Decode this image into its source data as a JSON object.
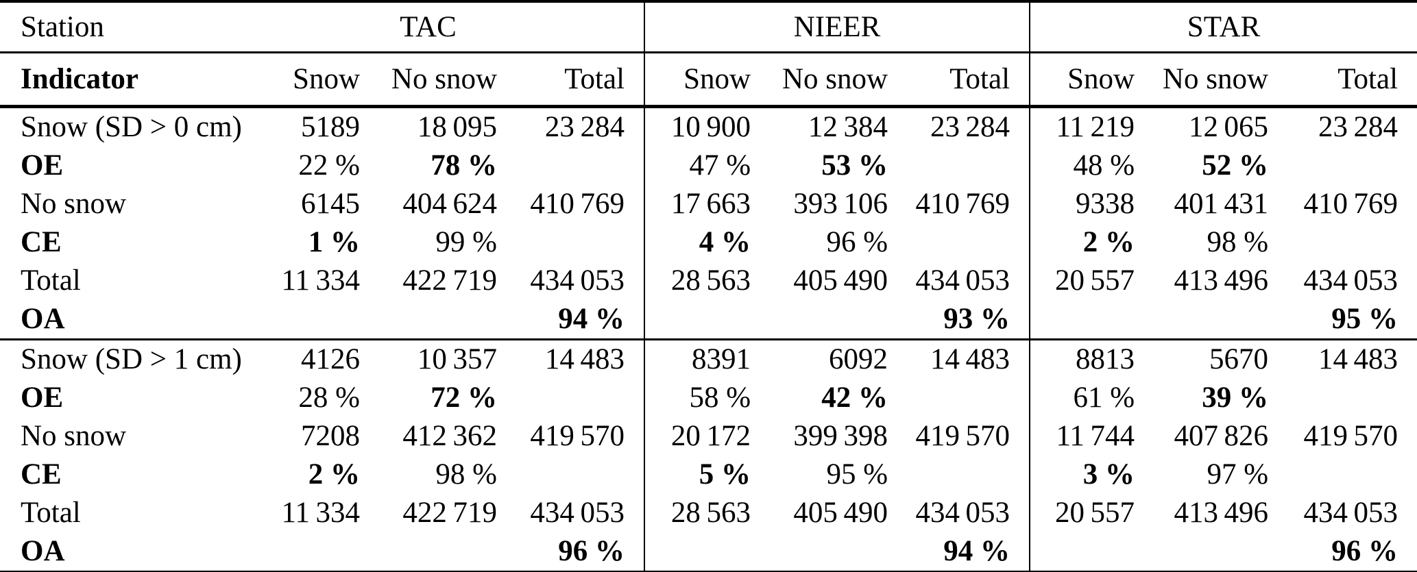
{
  "colors": {
    "text": "#000000",
    "background": "#ffffff",
    "rule": "#000000"
  },
  "table": {
    "station_label": "Station",
    "indicator_label": "Indicator",
    "groups": [
      {
        "name": "TAC"
      },
      {
        "name": "NIEER"
      },
      {
        "name": "STAR"
      }
    ],
    "sub_headers": [
      "Snow",
      "No snow",
      "Total"
    ],
    "blocks": [
      {
        "rows": [
          {
            "label": "Snow (SD > 0 cm)",
            "bold_label": false,
            "cells": [
              {
                "text": "5189",
                "bold": false
              },
              {
                "text": "18 095",
                "bold": false
              },
              {
                "text": "23 284",
                "bold": false
              },
              {
                "text": "10 900",
                "bold": false
              },
              {
                "text": "12 384",
                "bold": false
              },
              {
                "text": "23 284",
                "bold": false
              },
              {
                "text": "11 219",
                "bold": false
              },
              {
                "text": "12 065",
                "bold": false
              },
              {
                "text": "23 284",
                "bold": false
              }
            ]
          },
          {
            "label": "OE",
            "bold_label": true,
            "cells": [
              {
                "text": "22 %",
                "bold": false
              },
              {
                "text": "78 %",
                "bold": true
              },
              {
                "text": "",
                "bold": false
              },
              {
                "text": "47 %",
                "bold": false
              },
              {
                "text": "53 %",
                "bold": true
              },
              {
                "text": "",
                "bold": false
              },
              {
                "text": "48 %",
                "bold": false
              },
              {
                "text": "52 %",
                "bold": true
              },
              {
                "text": "",
                "bold": false
              }
            ]
          },
          {
            "label": "No snow",
            "bold_label": false,
            "cells": [
              {
                "text": "6145",
                "bold": false
              },
              {
                "text": "404 624",
                "bold": false
              },
              {
                "text": "410 769",
                "bold": false
              },
              {
                "text": "17 663",
                "bold": false
              },
              {
                "text": "393 106",
                "bold": false
              },
              {
                "text": "410 769",
                "bold": false
              },
              {
                "text": "9338",
                "bold": false
              },
              {
                "text": "401 431",
                "bold": false
              },
              {
                "text": "410 769",
                "bold": false
              }
            ]
          },
          {
            "label": "CE",
            "bold_label": true,
            "cells": [
              {
                "text": "1 %",
                "bold": true
              },
              {
                "text": "99 %",
                "bold": false
              },
              {
                "text": "",
                "bold": false
              },
              {
                "text": "4 %",
                "bold": true
              },
              {
                "text": "96 %",
                "bold": false
              },
              {
                "text": "",
                "bold": false
              },
              {
                "text": "2 %",
                "bold": true
              },
              {
                "text": "98 %",
                "bold": false
              },
              {
                "text": "",
                "bold": false
              }
            ]
          },
          {
            "label": "Total",
            "bold_label": false,
            "cells": [
              {
                "text": "11 334",
                "bold": false
              },
              {
                "text": "422 719",
                "bold": false
              },
              {
                "text": "434 053",
                "bold": false
              },
              {
                "text": "28 563",
                "bold": false
              },
              {
                "text": "405 490",
                "bold": false
              },
              {
                "text": "434 053",
                "bold": false
              },
              {
                "text": "20 557",
                "bold": false
              },
              {
                "text": "413 496",
                "bold": false
              },
              {
                "text": "434 053",
                "bold": false
              }
            ]
          },
          {
            "label": "OA",
            "bold_label": true,
            "cells": [
              {
                "text": "",
                "bold": false
              },
              {
                "text": "",
                "bold": false
              },
              {
                "text": "94 %",
                "bold": true
              },
              {
                "text": "",
                "bold": false
              },
              {
                "text": "",
                "bold": false
              },
              {
                "text": "93 %",
                "bold": true
              },
              {
                "text": "",
                "bold": false
              },
              {
                "text": "",
                "bold": false
              },
              {
                "text": "95 %",
                "bold": true
              }
            ]
          }
        ]
      },
      {
        "rows": [
          {
            "label": "Snow (SD > 1 cm)",
            "bold_label": false,
            "cells": [
              {
                "text": "4126",
                "bold": false
              },
              {
                "text": "10 357",
                "bold": false
              },
              {
                "text": "14 483",
                "bold": false
              },
              {
                "text": "8391",
                "bold": false
              },
              {
                "text": "6092",
                "bold": false
              },
              {
                "text": "14 483",
                "bold": false
              },
              {
                "text": "8813",
                "bold": false
              },
              {
                "text": "5670",
                "bold": false
              },
              {
                "text": "14 483",
                "bold": false
              }
            ]
          },
          {
            "label": "OE",
            "bold_label": true,
            "cells": [
              {
                "text": "28 %",
                "bold": false
              },
              {
                "text": "72 %",
                "bold": true
              },
              {
                "text": "",
                "bold": false
              },
              {
                "text": "58 %",
                "bold": false
              },
              {
                "text": "42 %",
                "bold": true
              },
              {
                "text": "",
                "bold": false
              },
              {
                "text": "61 %",
                "bold": false
              },
              {
                "text": "39 %",
                "bold": true
              },
              {
                "text": "",
                "bold": false
              }
            ]
          },
          {
            "label": "No snow",
            "bold_label": false,
            "cells": [
              {
                "text": "7208",
                "bold": false
              },
              {
                "text": "412 362",
                "bold": false
              },
              {
                "text": "419 570",
                "bold": false
              },
              {
                "text": "20 172",
                "bold": false
              },
              {
                "text": "399 398",
                "bold": false
              },
              {
                "text": "419 570",
                "bold": false
              },
              {
                "text": "11 744",
                "bold": false
              },
              {
                "text": "407 826",
                "bold": false
              },
              {
                "text": "419 570",
                "bold": false
              }
            ]
          },
          {
            "label": "CE",
            "bold_label": true,
            "cells": [
              {
                "text": "2 %",
                "bold": true
              },
              {
                "text": "98 %",
                "bold": false
              },
              {
                "text": "",
                "bold": false
              },
              {
                "text": "5 %",
                "bold": true
              },
              {
                "text": "95 %",
                "bold": false
              },
              {
                "text": "",
                "bold": false
              },
              {
                "text": "3 %",
                "bold": true
              },
              {
                "text": "97 %",
                "bold": false
              },
              {
                "text": "",
                "bold": false
              }
            ]
          },
          {
            "label": "Total",
            "bold_label": false,
            "cells": [
              {
                "text": "11 334",
                "bold": false
              },
              {
                "text": "422 719",
                "bold": false
              },
              {
                "text": "434 053",
                "bold": false
              },
              {
                "text": "28 563",
                "bold": false
              },
              {
                "text": "405 490",
                "bold": false
              },
              {
                "text": "434 053",
                "bold": false
              },
              {
                "text": "20 557",
                "bold": false
              },
              {
                "text": "413 496",
                "bold": false
              },
              {
                "text": "434 053",
                "bold": false
              }
            ]
          },
          {
            "label": "OA",
            "bold_label": true,
            "cells": [
              {
                "text": "",
                "bold": false
              },
              {
                "text": "",
                "bold": false
              },
              {
                "text": "96 %",
                "bold": true
              },
              {
                "text": "",
                "bold": false
              },
              {
                "text": "",
                "bold": false
              },
              {
                "text": "94 %",
                "bold": true
              },
              {
                "text": "",
                "bold": false
              },
              {
                "text": "",
                "bold": false
              },
              {
                "text": "96 %",
                "bold": true
              }
            ]
          }
        ]
      }
    ]
  }
}
